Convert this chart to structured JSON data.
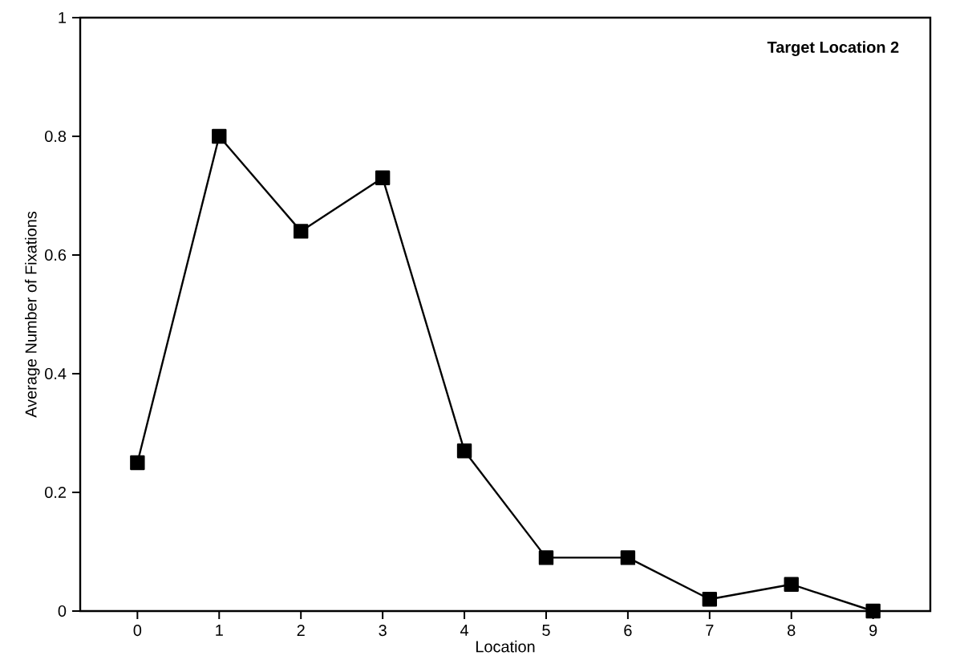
{
  "chart_data": {
    "type": "line",
    "xlabel": "Location",
    "ylabel": "Average Number of Fixations",
    "annotations": [
      "Target Location 2"
    ],
    "x": [
      0,
      1,
      2,
      3,
      4,
      5,
      6,
      7,
      8,
      9
    ],
    "series": [
      {
        "color": "#000000",
        "values": [
          0.25,
          0.8,
          0.64,
          0.73,
          0.27,
          0.09,
          0.09,
          0.02,
          0.045,
          0.0
        ]
      }
    ],
    "xlim": [
      -0.7,
      9.7
    ],
    "xticks": [
      0,
      1,
      2,
      3,
      4,
      5,
      6,
      7,
      8,
      9
    ],
    "ylim": [
      0,
      1
    ],
    "yticks": [
      0,
      0.2,
      0.4,
      0.6,
      0.8,
      1
    ],
    "marker": "square",
    "line_style": "solid"
  }
}
